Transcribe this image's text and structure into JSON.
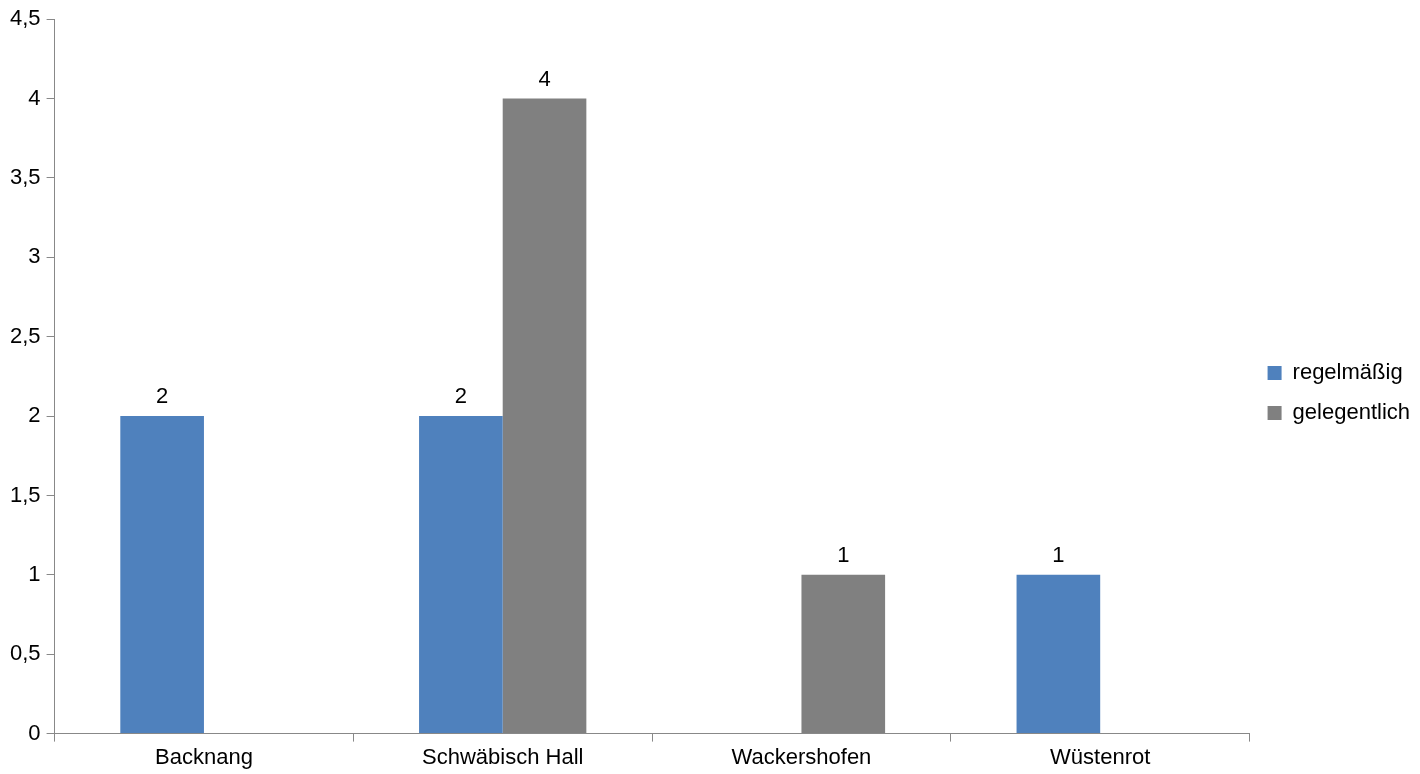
{
  "chart_data": {
    "type": "bar",
    "categories": [
      "Backnang",
      "Schwäbisch Hall",
      "Wackershofen",
      "Wüstenrot"
    ],
    "series": [
      {
        "name": "regelmäßig",
        "color": "#4f81bd",
        "values": [
          2,
          2,
          null,
          1
        ]
      },
      {
        "name": "gelegentlich",
        "color": "#808080",
        "values": [
          null,
          4,
          1,
          null
        ]
      }
    ],
    "ylim": [
      0,
      4.5
    ],
    "yticks": [
      0,
      {
        "value": 0.5,
        "label": "0,5"
      },
      1,
      {
        "value": 1.5,
        "label": "1,5"
      },
      2,
      {
        "value": 2.5,
        "label": "2,5"
      },
      3,
      {
        "value": 3.5,
        "label": "3,5"
      },
      4,
      {
        "value": 4.5,
        "label": "4,5"
      }
    ],
    "grid": false,
    "legend": "right",
    "data_labels": true
  }
}
